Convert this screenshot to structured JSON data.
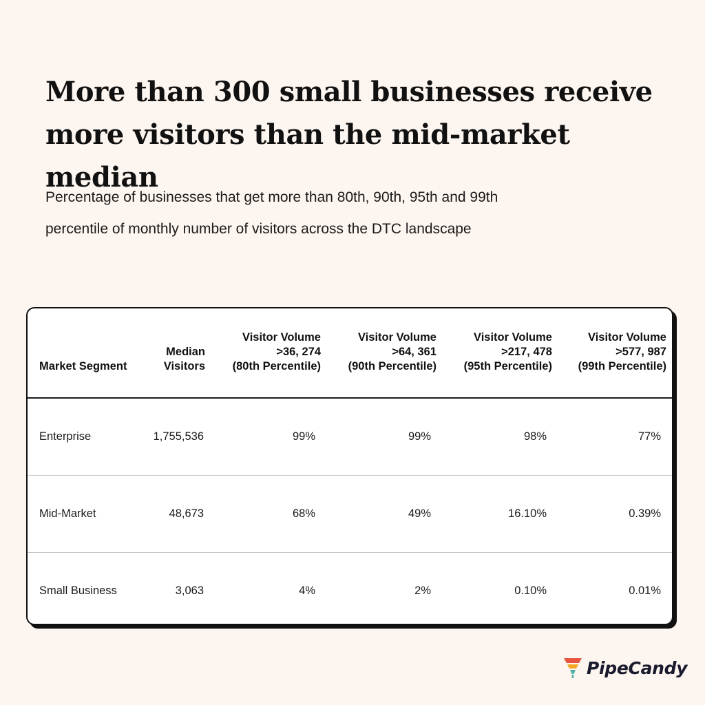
{
  "headline": {
    "line1": "More than 300 small businesses receive",
    "line2": "more visitors than the mid-market median"
  },
  "subtitle": {
    "line1": "Percentage of businesses that get more than 80th, 90th, 95th and 99th",
    "line2": "percentile of monthly number of visitors across the DTC landscape"
  },
  "table": {
    "headers": [
      {
        "lines": [
          "Market Segment"
        ]
      },
      {
        "lines": [
          "Median",
          "Visitors"
        ]
      },
      {
        "lines": [
          "Visitor Volume",
          ">36, 274",
          "(80th Percentile)"
        ]
      },
      {
        "lines": [
          "Visitor Volume",
          ">64, 361",
          "(90th Percentile)"
        ]
      },
      {
        "lines": [
          "Visitor Volume",
          ">217, 478",
          "(95th Percentile)"
        ]
      },
      {
        "lines": [
          "Visitor Volume",
          ">577, 987",
          "(99th Percentile)"
        ]
      }
    ],
    "rows": [
      [
        "Enterprise",
        "1,755,536",
        "99%",
        "99%",
        "98%",
        "77%"
      ],
      [
        "Mid-Market",
        "48,673",
        "68%",
        "49%",
        "16.10%",
        "0.39%"
      ],
      [
        "Small Business",
        "3,063",
        "4%",
        "2%",
        "0.10%",
        "0.01%"
      ]
    ]
  },
  "logo": {
    "text": "PipeCandy",
    "icon": "funnel-icon",
    "colors": [
      "#e8533f",
      "#f5a623",
      "#4fb3a9"
    ]
  },
  "colors": {
    "background": "#fdf5ef",
    "card": "#ffffff",
    "ink": "#111111"
  }
}
